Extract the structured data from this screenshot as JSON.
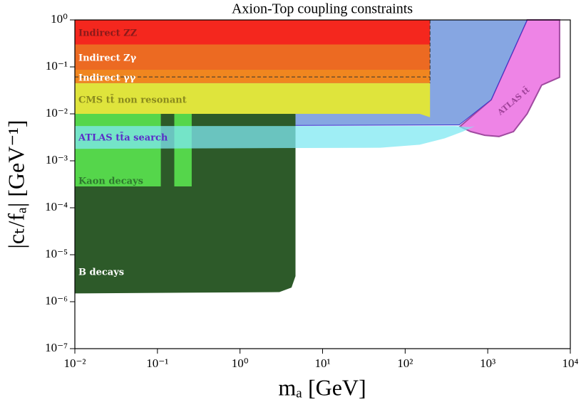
{
  "chart_data": {
    "type": "region",
    "title": "Axion-Top coupling constraints",
    "x_label": "mₐ [GeV]",
    "y_label": "|cₜ/fₐ| [GeV⁻¹]",
    "log_x": true,
    "log_y": true,
    "xlim": [
      0.01,
      10000
    ],
    "ylim": [
      1e-07,
      1
    ],
    "xticks": [
      {
        "value": 0.01,
        "label": "10⁻²"
      },
      {
        "value": 0.1,
        "label": "10⁻¹"
      },
      {
        "value": 1,
        "label": "10⁰"
      },
      {
        "value": 10,
        "label": "10¹"
      },
      {
        "value": 100,
        "label": "10²"
      },
      {
        "value": 1000,
        "label": "10³"
      },
      {
        "value": 10000,
        "label": "10⁴"
      }
    ],
    "yticks": [
      {
        "value": 1e-07,
        "label": "10⁻⁷"
      },
      {
        "value": 1e-06,
        "label": "10⁻⁶"
      },
      {
        "value": 1e-05,
        "label": "10⁻⁵"
      },
      {
        "value": 0.0001,
        "label": "10⁻⁴"
      },
      {
        "value": 0.001,
        "label": "10⁻³"
      },
      {
        "value": 0.01,
        "label": "10⁻²"
      },
      {
        "value": 0.1,
        "label": "10⁻¹"
      },
      {
        "value": 1,
        "label": "10⁰"
      }
    ],
    "series": [
      {
        "name": "ATLAS tt̄",
        "color": "#ee84e6",
        "x": [
          3000,
          7400,
          7400,
          4500,
          3000,
          2050,
          1370,
          920,
          620,
          460,
          1100
        ],
        "y": [
          1,
          1,
          0.06,
          0.041,
          0.01,
          0.0042,
          0.0033,
          0.0035,
          0.0042,
          0.0054,
          0.02
        ]
      },
      {
        "name": null,
        "color": "#86a6e2",
        "x": [
          0.01,
          3000,
          1100,
          450,
          0.01
        ],
        "y": [
          1,
          1,
          0.02,
          0.0058,
          0.0055
        ]
      },
      {
        "name": "B decays",
        "color": "#2d5a29",
        "x": [
          0.01,
          4.7,
          4.7,
          4.2,
          3,
          0.01
        ],
        "y": [
          0.01,
          0.01,
          3.5e-06,
          2e-06,
          1.6e-06,
          1.5e-06
        ]
      },
      {
        "name": "Kaon decays",
        "color": "#55d64b",
        "x": [
          0.01,
          0.11,
          0.11,
          0.01,
          null,
          0.16,
          0.26,
          0.26,
          0.16
        ],
        "y": [
          0.01,
          0.01,
          0.000285,
          0.000285,
          null,
          0.01,
          0.01,
          0.000285,
          0.000285
        ]
      },
      {
        "name": "ATLAS tt̄a search",
        "color": "#7fe8f2",
        "x": [
          0.01,
          50,
          150,
          300,
          500,
          700,
          600,
          400,
          0.01
        ],
        "y": [
          0.0018,
          0.0019,
          0.0022,
          0.003,
          0.0042,
          0.0055,
          0.0052,
          0.0055,
          0.0055
        ]
      },
      {
        "name": "CMS tt̄ non resonant",
        "color": "#dfe43c",
        "x": [
          0.01,
          200,
          200,
          150,
          0.01
        ],
        "y": [
          0.045,
          0.045,
          0.0085,
          0.01,
          0.01
        ]
      },
      {
        "name": "Indirect γγ",
        "color": "#f0861f",
        "x": [
          0.01,
          200,
          200,
          0.01
        ],
        "y": [
          0.087,
          0.087,
          0.045,
          0.045
        ]
      },
      {
        "name": "Indirect Zγ",
        "color": "#ec6a22",
        "x": [
          0.01,
          200,
          200,
          0.01
        ],
        "y": [
          0.3,
          0.3,
          0.087,
          0.087
        ]
      },
      {
        "name": "Indirect ZZ",
        "color": "#f4271e",
        "x": [
          0.01,
          200,
          200,
          0.01
        ],
        "y": [
          1,
          1,
          0.3,
          0.3
        ]
      }
    ],
    "reference_lines": [
      {
        "axis": "y",
        "value": 0.061
      },
      {
        "axis": "x",
        "value": 200
      }
    ]
  }
}
